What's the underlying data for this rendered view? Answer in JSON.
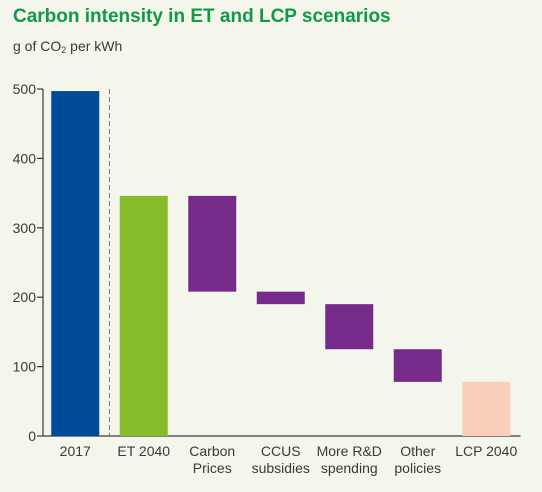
{
  "chart_data": {
    "type": "bar",
    "subtype": "waterfall",
    "title": "Carbon intensity in ET and LCP scenarios",
    "ylabel": {
      "prefix": "g of CO",
      "subscript": "2",
      "suffix": " per kWh"
    },
    "categories": [
      [
        "2017"
      ],
      [
        "ET 2040"
      ],
      [
        "Carbon",
        "Prices"
      ],
      [
        "CCUS",
        "subsidies"
      ],
      [
        "More R&D",
        "spending"
      ],
      [
        "Other",
        "policies"
      ],
      [
        "LCP 2040"
      ]
    ],
    "bars": [
      {
        "from": 0,
        "to": 497,
        "color": "#004b97"
      },
      {
        "from": 0,
        "to": 346,
        "color": "#86bc2c"
      },
      {
        "from": 208,
        "to": 346,
        "color": "#762b8a"
      },
      {
        "from": 190,
        "to": 208,
        "color": "#762b8a"
      },
      {
        "from": 125,
        "to": 190,
        "color": "#762b8a"
      },
      {
        "from": 78,
        "to": 125,
        "color": "#762b8a"
      },
      {
        "from": 0,
        "to": 78,
        "color": "#f9cfbc"
      }
    ],
    "ylim": [
      0,
      500
    ],
    "yticks": [
      0,
      100,
      200,
      300,
      400,
      500
    ],
    "grid": false,
    "legend": "none",
    "separator_after_category": 0
  }
}
